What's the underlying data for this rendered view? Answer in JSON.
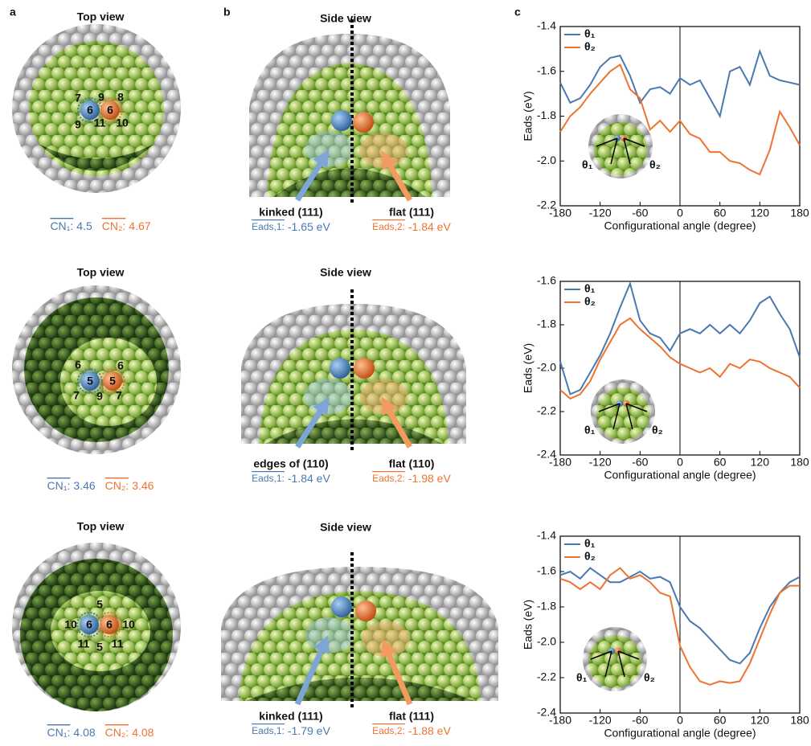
{
  "panel_labels": [
    "a",
    "b",
    "c"
  ],
  "top_views": [
    {
      "title": "Top view",
      "atom_labels": [
        "7",
        "9",
        "8",
        "6",
        "6",
        "9",
        "11",
        "10"
      ],
      "cn1_label": "CN₁:",
      "cn1_value": 4.5,
      "cn2_label": "CN₂:",
      "cn2_value": 4.67
    },
    {
      "title": "Top view",
      "atom_labels": [
        "6",
        "6",
        "5",
        "5",
        "7",
        "9",
        "7"
      ],
      "cn1_label": "CN₁:",
      "cn1_value": 3.46,
      "cn2_label": "CN₂:",
      "cn2_value": 3.46
    },
    {
      "title": "Top view",
      "atom_labels": [
        "5",
        "10",
        "6",
        "6",
        "10",
        "11",
        "5",
        "11"
      ],
      "cn1_label": "CN₁:",
      "cn1_value": 4.08,
      "cn2_label": "CN₂:",
      "cn2_value": 4.08
    }
  ],
  "side_views": [
    {
      "title": "Side view",
      "site1": "kinked (111)",
      "site2": "flat (111)",
      "e1_label": "Eads,1:",
      "e1_value": "-1.65 eV",
      "e2_label": "Eads,2:",
      "e2_value": "-1.84 eV"
    },
    {
      "title": "Side view",
      "site1": "edges of (110)",
      "site2": "flat (110)",
      "e1_label": "Eads,1:",
      "e1_value": "-1.84 eV",
      "e2_label": "Eads,2:",
      "e2_value": "-1.98 eV"
    },
    {
      "title": "Side view",
      "site1": "kinked (111)",
      "site2": "flat (111)",
      "e1_label": "Eads,1:",
      "e1_value": "-1.79 eV",
      "e2_label": "Eads,2:",
      "e2_value": "-1.88 eV"
    }
  ],
  "chart_data": [
    {
      "type": "line",
      "x": [
        -180,
        -165,
        -150,
        -135,
        -120,
        -105,
        -90,
        -75,
        -60,
        -45,
        -30,
        -15,
        0,
        15,
        30,
        45,
        60,
        75,
        90,
        105,
        120,
        135,
        150,
        165,
        180
      ],
      "series": [
        {
          "name": "θ₁",
          "color": "#4a78b0",
          "values": [
            -1.65,
            -1.74,
            -1.72,
            -1.66,
            -1.58,
            -1.54,
            -1.53,
            -1.62,
            -1.74,
            -1.68,
            -1.67,
            -1.7,
            -1.63,
            -1.66,
            -1.64,
            -1.72,
            -1.8,
            -1.6,
            -1.58,
            -1.66,
            -1.51,
            -1.62,
            -1.64,
            -1.65,
            -1.66
          ]
        },
        {
          "name": "θ₂",
          "color": "#ee7330",
          "values": [
            -1.87,
            -1.8,
            -1.76,
            -1.7,
            -1.65,
            -1.6,
            -1.57,
            -1.68,
            -1.72,
            -1.86,
            -1.82,
            -1.87,
            -1.82,
            -1.88,
            -1.9,
            -1.96,
            -1.96,
            -2.0,
            -2.01,
            -2.04,
            -2.06,
            -1.95,
            -1.78,
            -1.85,
            -1.93
          ]
        }
      ],
      "xlim": [
        -180,
        180
      ],
      "xticks": [
        -180,
        -120,
        -60,
        0,
        60,
        120,
        180
      ],
      "ylim": [
        -2.2,
        -1.4
      ],
      "yticks": [
        -1.4,
        -1.6,
        -1.8,
        {
          "value": -2,
          "label": "-2.0"
        },
        -2.2
      ],
      "xlabel": "Configurational angle (degree)",
      "ylabel": "Eads (eV)",
      "vlines": [
        0
      ],
      "annotations": [
        "θ₁",
        "θ₂"
      ],
      "legend": "upper left"
    },
    {
      "type": "line",
      "x": [
        -180,
        -165,
        -150,
        -135,
        -120,
        -105,
        -90,
        -75,
        -60,
        -45,
        -30,
        -15,
        0,
        15,
        30,
        45,
        60,
        75,
        90,
        105,
        120,
        135,
        150,
        165,
        180
      ],
      "series": [
        {
          "name": "θ₁",
          "color": "#4a78b0",
          "values": [
            -1.97,
            -2.12,
            -2.1,
            -2.02,
            -1.94,
            -1.84,
            -1.72,
            -1.61,
            -1.78,
            -1.84,
            -1.86,
            -1.92,
            -1.84,
            -1.82,
            -1.84,
            -1.8,
            -1.84,
            -1.8,
            -1.84,
            -1.78,
            -1.7,
            -1.67,
            -1.75,
            -1.82,
            -1.95
          ]
        },
        {
          "name": "θ₂",
          "color": "#ee7330",
          "values": [
            -2.1,
            -2.14,
            -2.12,
            -2.06,
            -1.96,
            -1.88,
            -1.8,
            -1.77,
            -1.82,
            -1.86,
            -1.9,
            -1.95,
            -1.98,
            -2.0,
            -2.02,
            -2.0,
            -2.04,
            -1.98,
            -2.0,
            -1.96,
            -1.97,
            -2.0,
            -2.02,
            -2.04,
            -2.09
          ]
        }
      ],
      "xlim": [
        -180,
        180
      ],
      "xticks": [
        -180,
        -120,
        -60,
        0,
        60,
        120,
        180
      ],
      "ylim": [
        -2.4,
        -1.6
      ],
      "yticks": [
        -1.6,
        -1.8,
        {
          "value": -2,
          "label": "-2.0"
        },
        -2.2,
        -2.4
      ],
      "xlabel": "Configurational angle (degree)",
      "ylabel": "Eads (eV)",
      "vlines": [
        0
      ],
      "annotations": [
        "θ₁",
        "θ₂"
      ],
      "legend": "upper left"
    },
    {
      "type": "line",
      "x": [
        -180,
        -165,
        -150,
        -135,
        -120,
        -105,
        -90,
        -75,
        -60,
        -45,
        -30,
        -15,
        0,
        15,
        30,
        45,
        60,
        75,
        90,
        105,
        120,
        135,
        150,
        165,
        180
      ],
      "series": [
        {
          "name": "θ₁",
          "color": "#4a78b0",
          "values": [
            -1.62,
            -1.6,
            -1.64,
            -1.58,
            -1.62,
            -1.66,
            -1.66,
            -1.63,
            -1.6,
            -1.64,
            -1.63,
            -1.66,
            -1.8,
            -1.88,
            -1.92,
            -1.98,
            -2.04,
            -2.1,
            -2.12,
            -2.06,
            -1.92,
            -1.8,
            -1.72,
            -1.66,
            -1.63
          ]
        },
        {
          "name": "θ₂",
          "color": "#ee7330",
          "values": [
            -1.64,
            -1.66,
            -1.7,
            -1.66,
            -1.7,
            -1.62,
            -1.58,
            -1.64,
            -1.62,
            -1.66,
            -1.72,
            -1.74,
            -2.02,
            -2.14,
            -2.22,
            -2.24,
            -2.22,
            -2.23,
            -2.22,
            -2.12,
            -1.98,
            -1.84,
            -1.72,
            -1.68,
            -1.68
          ]
        }
      ],
      "xlim": [
        -180,
        180
      ],
      "xticks": [
        -180,
        -120,
        -60,
        0,
        60,
        120,
        180
      ],
      "ylim": [
        -2.4,
        -1.4
      ],
      "yticks": [
        -1.4,
        -1.6,
        -1.8,
        {
          "value": -2,
          "label": "-2.0"
        },
        -2.2,
        -2.4
      ],
      "xlabel": "Configurational angle (degree)",
      "ylabel": "Eads (eV)",
      "vlines": [
        0
      ],
      "annotations": [
        "θ₁",
        "θ₂"
      ],
      "legend": "upper left"
    }
  ]
}
